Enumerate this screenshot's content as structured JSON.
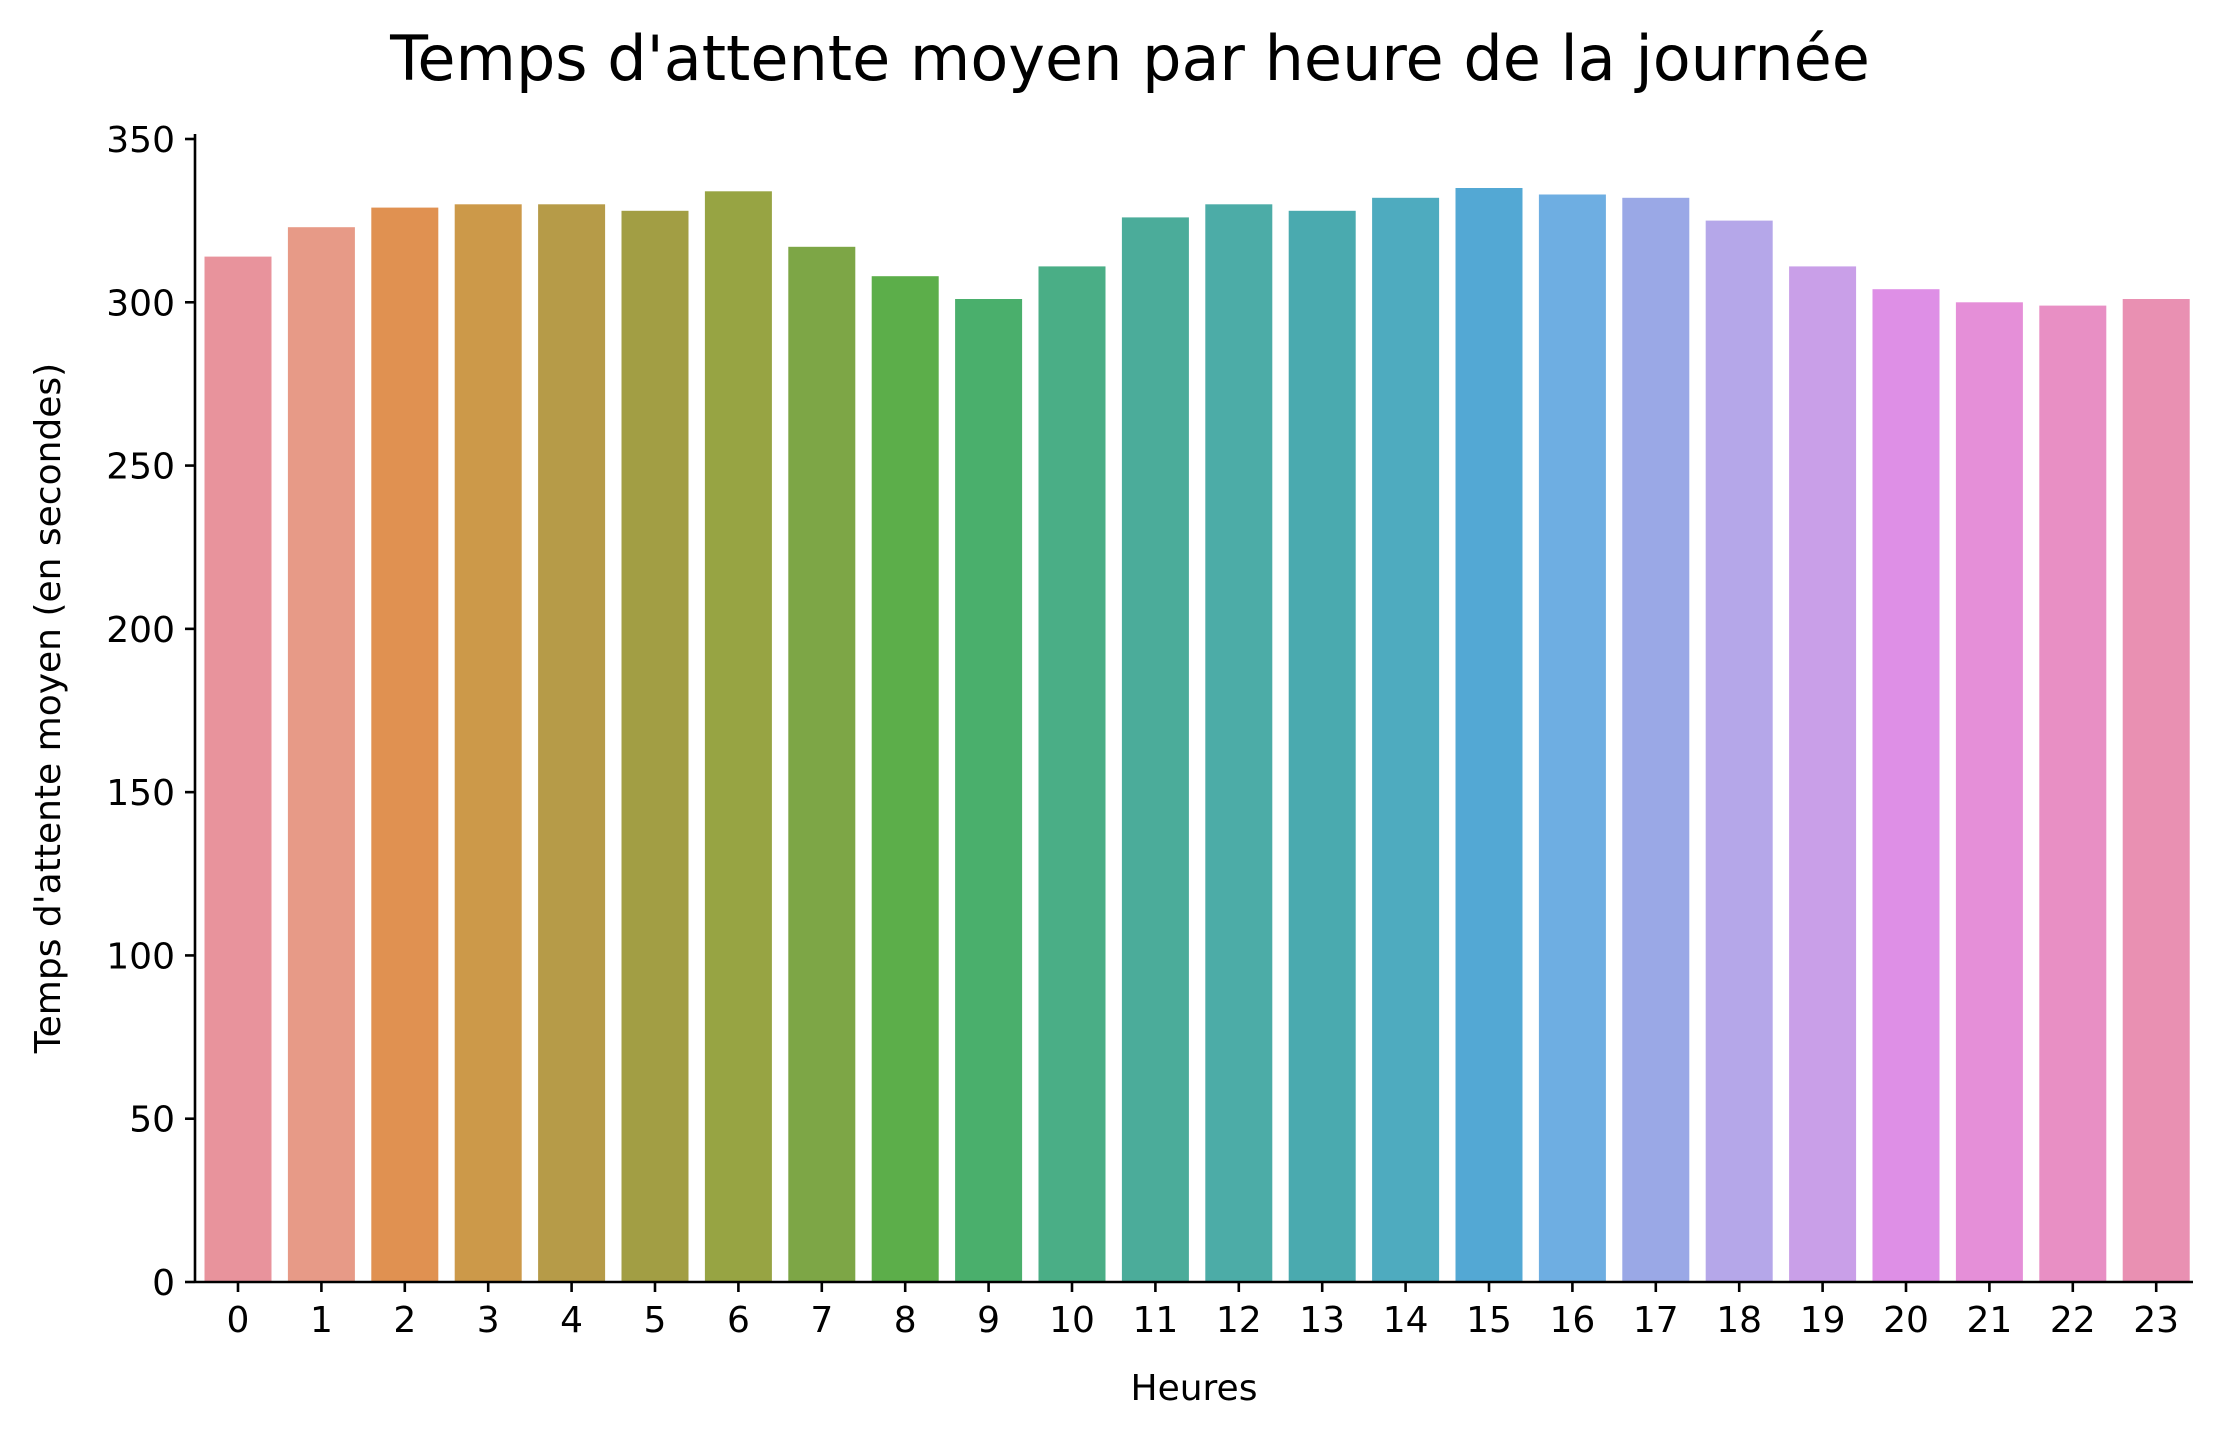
{
  "chart_data": {
    "type": "bar",
    "title": "Temps d'attente moyen par heure de la journée",
    "xlabel": "Heures",
    "ylabel": "Temps d'attente moyen (en secondes)",
    "ylim": [
      0,
      350
    ],
    "yticks": [
      0,
      50,
      100,
      150,
      200,
      250,
      300,
      350
    ],
    "grid": false,
    "legend": "none",
    "categories": [
      "0",
      "1",
      "2",
      "3",
      "4",
      "5",
      "6",
      "7",
      "8",
      "9",
      "10",
      "11",
      "12",
      "13",
      "14",
      "15",
      "16",
      "17",
      "18",
      "19",
      "20",
      "21",
      "22",
      "23"
    ],
    "values": [
      314,
      323,
      329,
      330,
      330,
      328,
      334,
      317,
      308,
      301,
      311,
      326,
      330,
      328,
      332,
      335,
      333,
      332,
      325,
      311,
      304,
      300,
      299,
      301
    ],
    "colors": [
      "#e8939c",
      "#e79a87",
      "#e09151",
      "#cc9949",
      "#b69b48",
      "#a29e44",
      "#97a443",
      "#7da646",
      "#5cae4a",
      "#4aaf6c",
      "#4aae86",
      "#4bac9a",
      "#4caca7",
      "#4aaaaf",
      "#4eabbf",
      "#53a8d4",
      "#6eaee2",
      "#9aa8e6",
      "#b5a7e9",
      "#c99fe8",
      "#de8fe6",
      "#e58fd8",
      "#e88fc4",
      "#e990b2"
    ]
  }
}
